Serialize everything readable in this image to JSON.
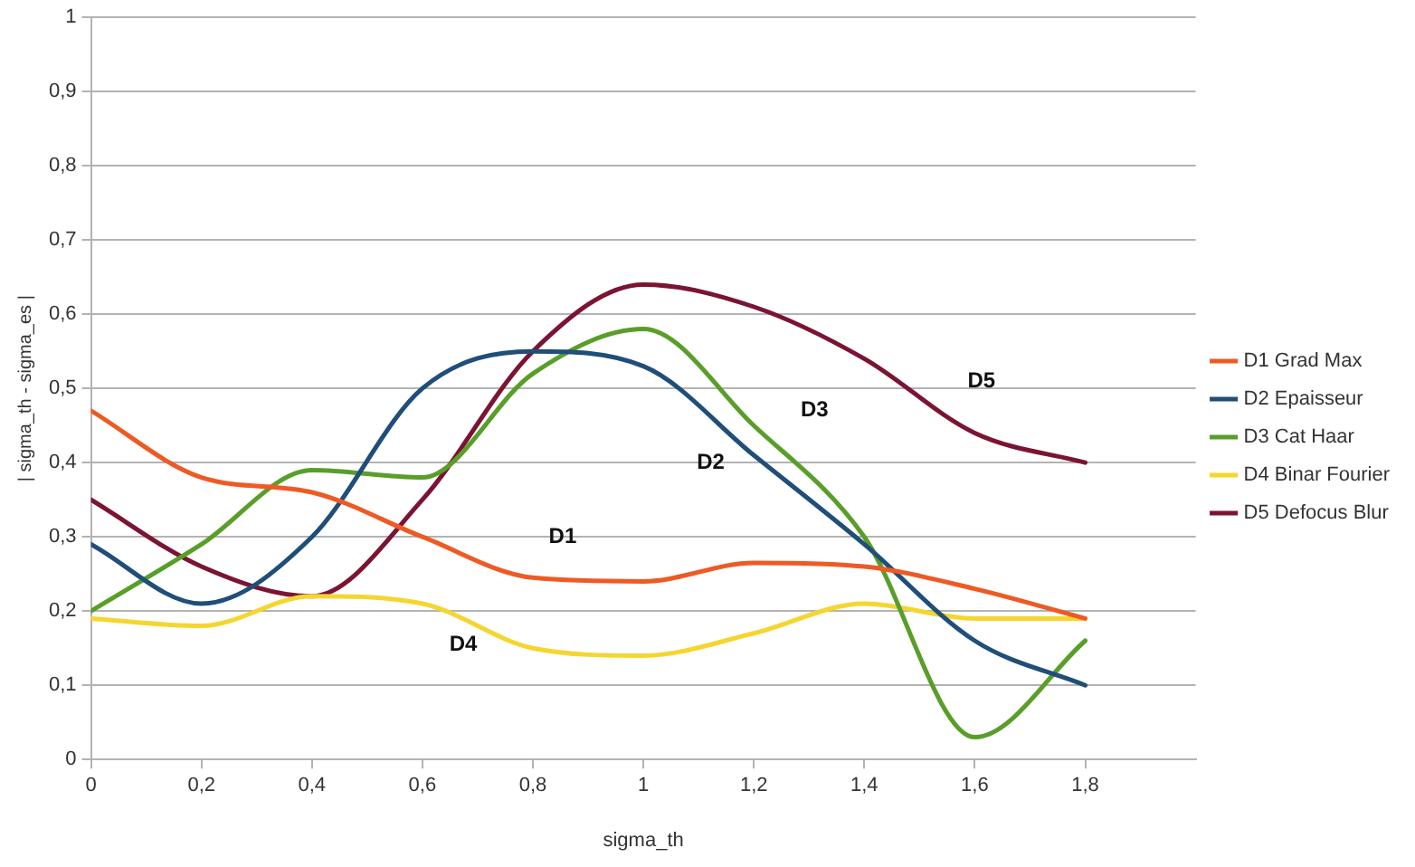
{
  "chart_data": {
    "type": "line",
    "xlabel": "sigma_th",
    "ylabel": "| sigma_th - sigma_es |",
    "x": [
      0,
      0.2,
      0.4,
      0.6,
      0.8,
      1.0,
      1.2,
      1.4,
      1.6,
      1.8
    ],
    "series": [
      {
        "name": "D1 Grad Max",
        "color": "#ee5a24",
        "values": [
          0.47,
          0.38,
          0.36,
          0.3,
          0.245,
          0.24,
          0.265,
          0.26,
          0.23,
          0.19
        ]
      },
      {
        "name": "D2 Epaisseur",
        "color": "#1f4e79",
        "values": [
          0.29,
          0.21,
          0.3,
          0.5,
          0.55,
          0.53,
          0.41,
          0.29,
          0.16,
          0.1
        ]
      },
      {
        "name": "D3 Cat Haar",
        "color": "#5a9e2a",
        "values": [
          0.2,
          0.29,
          0.39,
          0.38,
          0.52,
          0.58,
          0.45,
          0.3,
          0.03,
          0.16
        ]
      },
      {
        "name": "D4 Binar Fourier",
        "color": "#f5d630",
        "values": [
          0.19,
          0.18,
          0.22,
          0.21,
          0.15,
          0.14,
          0.17,
          0.21,
          0.19,
          0.19
        ]
      },
      {
        "name": "D5 Defocus Blur",
        "color": "#7b1433",
        "values": [
          0.35,
          0.26,
          0.22,
          0.35,
          0.55,
          0.64,
          0.61,
          0.54,
          0.44,
          0.4
        ]
      }
    ],
    "xlim": [
      0,
      2
    ],
    "xticks": [
      0,
      {
        "value": 0.2,
        "label": "0,2"
      },
      {
        "value": 0.4,
        "label": "0,4"
      },
      {
        "value": 0.6,
        "label": "0,6"
      },
      {
        "value": 0.8,
        "label": "0,8"
      },
      1,
      {
        "value": 1.2,
        "label": "1,2"
      },
      {
        "value": 1.4,
        "label": "1,4"
      },
      {
        "value": 1.6,
        "label": "1,6"
      },
      {
        "value": 1.8,
        "label": "1,8"
      }
    ],
    "ylim": [
      0,
      1
    ],
    "yticks": [
      0,
      {
        "value": 0.1,
        "label": "0,1"
      },
      {
        "value": 0.2,
        "label": "0,2"
      },
      {
        "value": 0.3,
        "label": "0,3"
      },
      {
        "value": 0.4,
        "label": "0,4"
      },
      {
        "value": 0.5,
        "label": "0,5"
      },
      {
        "value": 0.6,
        "label": "0,6"
      },
      {
        "value": 0.7,
        "label": "0,7"
      },
      {
        "value": 0.8,
        "label": "0,8"
      },
      {
        "value": 0.9,
        "label": "0,9"
      },
      1
    ],
    "annotations": [
      "D1",
      "D2",
      "D3",
      "D4",
      "D5"
    ],
    "grid": "y",
    "legend": "right",
    "marker": "none",
    "line_style": "solid"
  }
}
